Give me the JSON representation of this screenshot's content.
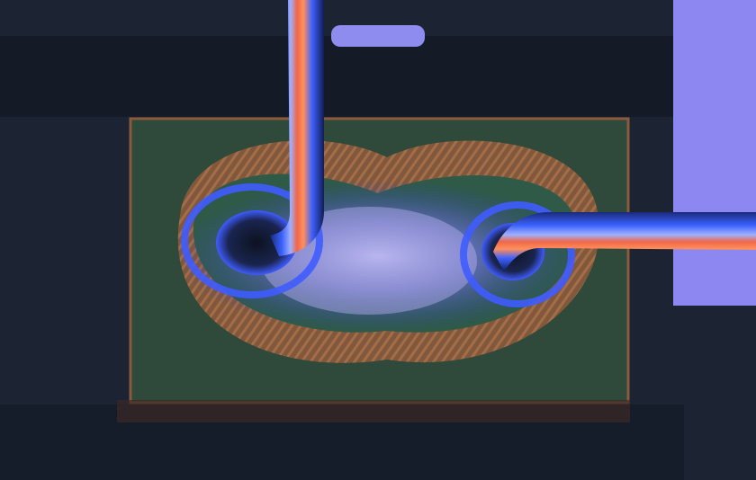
{
  "image": {
    "subject": "micrograph-wire-bond-pad",
    "colors": {
      "background": "#1c2433",
      "dark_band": "#141b27",
      "pad_body": "#2f4a3a",
      "pad_edge": "#8a5a3c",
      "solder_ring": "#a2643f",
      "glow_blue": "#3f5cff",
      "glow_violet": "#7b79e6",
      "wire_core": "#f0674a",
      "wire_sheath": "#3b61ff",
      "light_pad": "#8d87f1"
    }
  }
}
